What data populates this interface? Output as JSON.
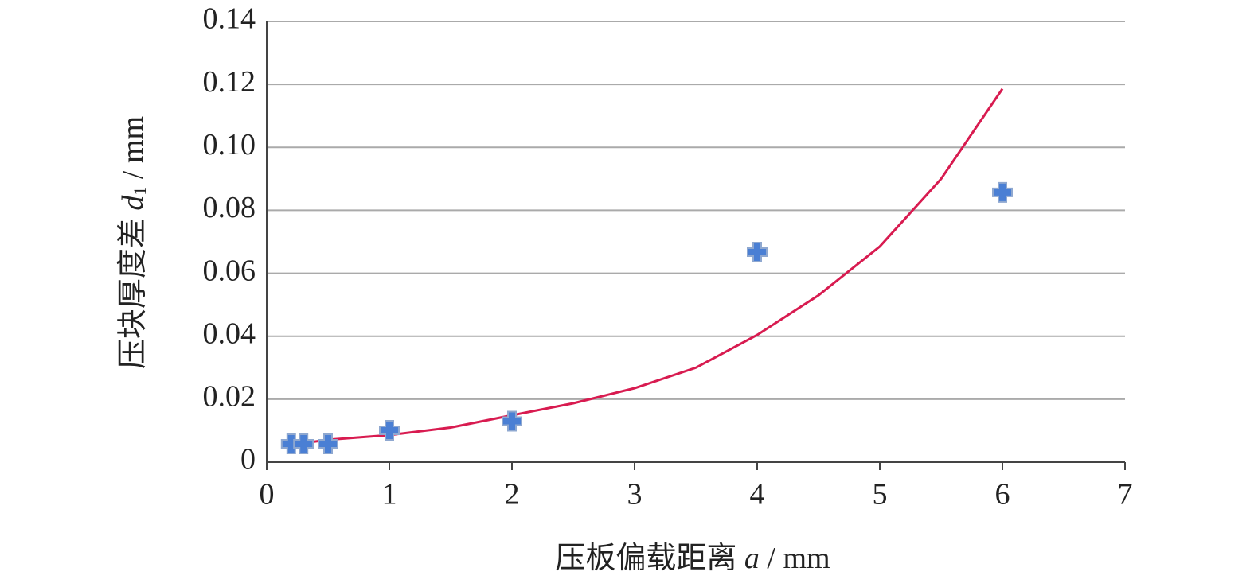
{
  "chart_data": {
    "type": "scatter",
    "x_label": {
      "text": "压板偏载距离",
      "var": "a",
      "unit": "/ mm"
    },
    "y_label": {
      "text": "压块厚度差",
      "var": "d",
      "sub": "1",
      "unit": "/ mm"
    },
    "xlim": [
      0,
      7
    ],
    "xticks": [
      0,
      1,
      2,
      3,
      4,
      5,
      6,
      7
    ],
    "ylim": [
      0,
      0.14
    ],
    "yticks": [
      0,
      0.02,
      0.04,
      0.06,
      0.08,
      {
        "value": 0.1,
        "label": "0.10"
      },
      0.12,
      0.14
    ],
    "grid": true,
    "series": [
      {
        "type": "scatter",
        "color": "#4a7fd4",
        "x": [
          0.2,
          0.3,
          0.5,
          1,
          2,
          4,
          6
        ],
        "values": [
          0.0058,
          0.0058,
          0.0058,
          0.0101,
          0.013,
          0.0667,
          0.0857
        ]
      },
      {
        "type": "line",
        "color": "#d81b50",
        "x": [
          0.2,
          0.5,
          1,
          1.5,
          2,
          2.5,
          3,
          3.5,
          4,
          4.5,
          5,
          5.5,
          6
        ],
        "values": [
          0.0055,
          0.0071,
          0.0086,
          0.011,
          0.0149,
          0.0187,
          0.0235,
          0.03,
          0.0404,
          0.053,
          0.0685,
          0.09,
          0.1186
        ]
      }
    ]
  }
}
